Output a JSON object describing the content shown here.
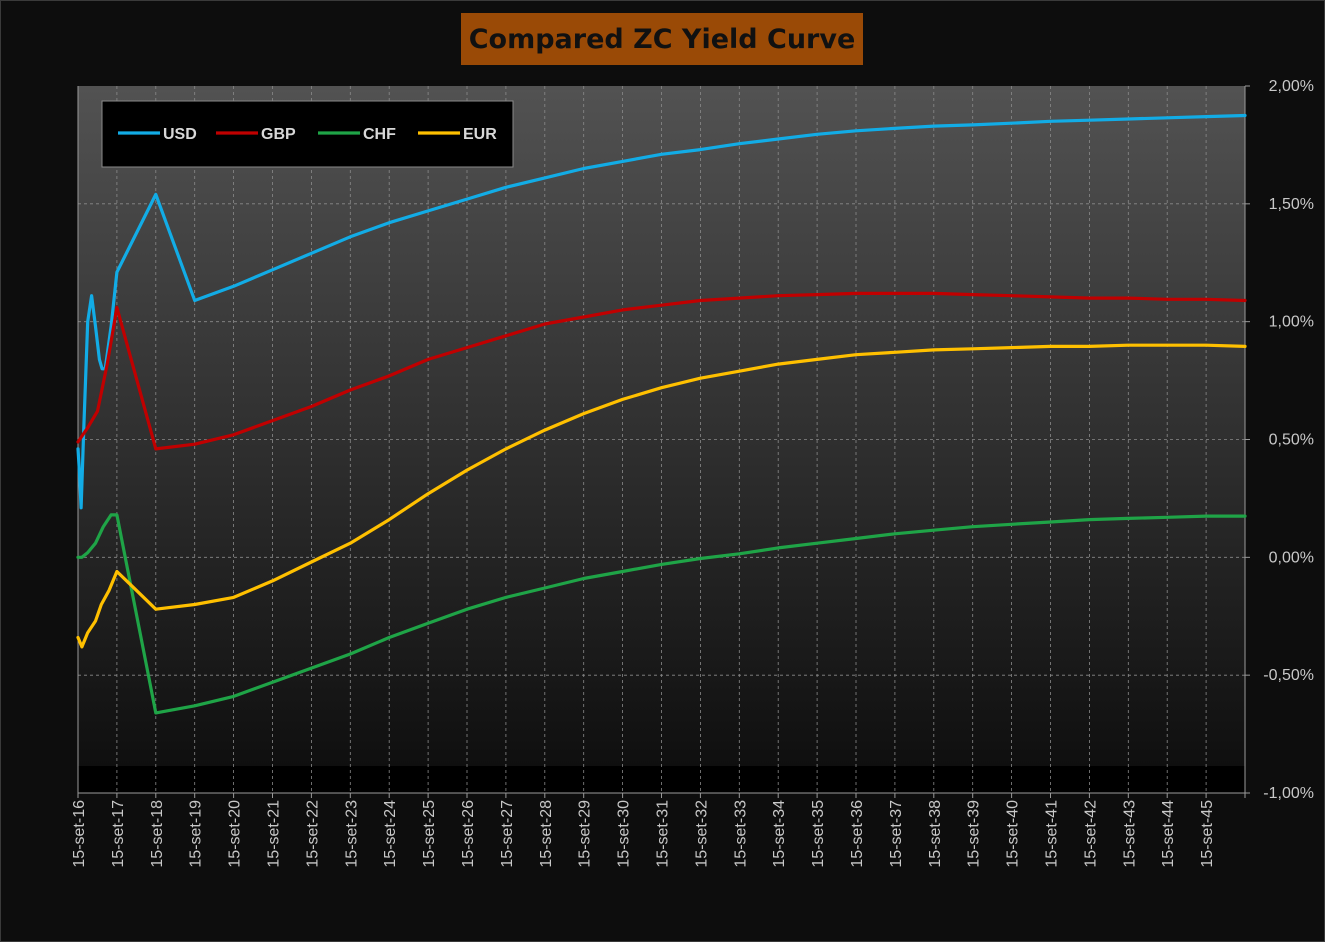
{
  "title": "Compared ZC Yield Curve",
  "colors": {
    "USD": "#12ace6",
    "GBP": "#c00000",
    "CHF": "#1fa447",
    "EUR": "#ffc000",
    "title_bg": "#9a4a06"
  },
  "chart_data": {
    "type": "line",
    "title": "Compared ZC Yield Curve",
    "xlabel": "",
    "ylabel": "",
    "x_ticks": [
      "15-set-16",
      "15-set-17",
      "15-set-18",
      "15-set-19",
      "15-set-20",
      "15-set-21",
      "15-set-22",
      "15-set-23",
      "15-set-24",
      "15-set-25",
      "15-set-26",
      "15-set-27",
      "15-set-28",
      "15-set-29",
      "15-set-30",
      "15-set-31",
      "15-set-32",
      "15-set-33",
      "15-set-34",
      "15-set-35",
      "15-set-36",
      "15-set-37",
      "15-set-38",
      "15-set-39",
      "15-set-40",
      "15-set-41",
      "15-set-42",
      "15-set-43",
      "15-set-44",
      "15-set-45"
    ],
    "y_ticks": [
      "2,00%",
      "1,50%",
      "1,00%",
      "0,50%",
      "0,00%",
      "-0,50%",
      "-1,00%"
    ],
    "ylim": [
      -1.0,
      2.0
    ],
    "xlim": [
      0,
      30
    ],
    "y_unit": "%",
    "grid": true,
    "legend_position": "top-left",
    "series": [
      {
        "name": "USD",
        "points": [
          [
            0,
            0.46
          ],
          [
            0.04,
            0.35
          ],
          [
            0.08,
            0.21
          ],
          [
            0.15,
            0.55
          ],
          [
            0.25,
            1.0
          ],
          [
            0.35,
            1.11
          ],
          [
            0.45,
            0.98
          ],
          [
            0.55,
            0.84
          ],
          [
            0.62,
            0.8
          ],
          [
            0.7,
            0.8
          ],
          [
            0.85,
            0.98
          ],
          [
            1,
            1.21
          ],
          [
            2,
            1.54
          ],
          [
            3,
            1.09
          ],
          [
            4,
            1.15
          ],
          [
            5,
            1.22
          ],
          [
            6,
            1.29
          ],
          [
            7,
            1.36
          ],
          [
            8,
            1.42
          ],
          [
            9,
            1.47
          ],
          [
            10,
            1.52
          ],
          [
            11,
            1.57
          ],
          [
            12,
            1.61
          ],
          [
            13,
            1.65
          ],
          [
            14,
            1.68
          ],
          [
            15,
            1.71
          ],
          [
            16,
            1.73
          ],
          [
            17,
            1.755
          ],
          [
            18,
            1.775
          ],
          [
            19,
            1.795
          ],
          [
            20,
            1.81
          ],
          [
            21,
            1.82
          ],
          [
            22,
            1.83
          ],
          [
            23,
            1.835
          ],
          [
            24,
            1.842
          ],
          [
            25,
            1.85
          ],
          [
            26,
            1.855
          ],
          [
            27,
            1.86
          ],
          [
            28,
            1.865
          ],
          [
            29,
            1.87
          ],
          [
            30,
            1.875
          ]
        ]
      },
      {
        "name": "GBP",
        "points": [
          [
            0,
            0.49
          ],
          [
            0.25,
            0.55
          ],
          [
            0.5,
            0.62
          ],
          [
            0.75,
            0.82
          ],
          [
            1,
            1.06
          ],
          [
            2,
            0.46
          ],
          [
            3,
            0.48
          ],
          [
            4,
            0.52
          ],
          [
            5,
            0.58
          ],
          [
            6,
            0.64
          ],
          [
            7,
            0.71
          ],
          [
            8,
            0.77
          ],
          [
            9,
            0.84
          ],
          [
            10,
            0.89
          ],
          [
            11,
            0.94
          ],
          [
            12,
            0.99
          ],
          [
            13,
            1.02
          ],
          [
            14,
            1.05
          ],
          [
            15,
            1.07
          ],
          [
            16,
            1.09
          ],
          [
            17,
            1.1
          ],
          [
            18,
            1.11
          ],
          [
            19,
            1.115
          ],
          [
            20,
            1.12
          ],
          [
            21,
            1.12
          ],
          [
            22,
            1.12
          ],
          [
            23,
            1.115
          ],
          [
            24,
            1.11
          ],
          [
            25,
            1.105
          ],
          [
            26,
            1.1
          ],
          [
            27,
            1.1
          ],
          [
            28,
            1.095
          ],
          [
            29,
            1.095
          ],
          [
            30,
            1.09
          ]
        ]
      },
      {
        "name": "CHF",
        "points": [
          [
            0,
            0.0
          ],
          [
            0.1,
            0.0
          ],
          [
            0.25,
            0.02
          ],
          [
            0.45,
            0.06
          ],
          [
            0.65,
            0.13
          ],
          [
            0.85,
            0.18
          ],
          [
            1,
            0.18
          ],
          [
            2,
            -0.66
          ],
          [
            3,
            -0.63
          ],
          [
            4,
            -0.59
          ],
          [
            5,
            -0.53
          ],
          [
            6,
            -0.47
          ],
          [
            7,
            -0.41
          ],
          [
            8,
            -0.34
          ],
          [
            9,
            -0.28
          ],
          [
            10,
            -0.22
          ],
          [
            11,
            -0.17
          ],
          [
            12,
            -0.13
          ],
          [
            13,
            -0.09
          ],
          [
            14,
            -0.06
          ],
          [
            15,
            -0.03
          ],
          [
            16,
            -0.005
          ],
          [
            17,
            0.015
          ],
          [
            18,
            0.04
          ],
          [
            19,
            0.06
          ],
          [
            20,
            0.08
          ],
          [
            21,
            0.1
          ],
          [
            22,
            0.115
          ],
          [
            23,
            0.13
          ],
          [
            24,
            0.14
          ],
          [
            25,
            0.15
          ],
          [
            26,
            0.16
          ],
          [
            27,
            0.165
          ],
          [
            28,
            0.17
          ],
          [
            29,
            0.175
          ],
          [
            30,
            0.175
          ]
        ]
      },
      {
        "name": "EUR",
        "points": [
          [
            0,
            -0.34
          ],
          [
            0.1,
            -0.38
          ],
          [
            0.25,
            -0.32
          ],
          [
            0.45,
            -0.27
          ],
          [
            0.6,
            -0.2
          ],
          [
            0.8,
            -0.14
          ],
          [
            1,
            -0.06
          ],
          [
            2,
            -0.22
          ],
          [
            3,
            -0.2
          ],
          [
            4,
            -0.17
          ],
          [
            5,
            -0.1
          ],
          [
            6,
            -0.02
          ],
          [
            7,
            0.06
          ],
          [
            8,
            0.16
          ],
          [
            9,
            0.27
          ],
          [
            10,
            0.37
          ],
          [
            11,
            0.46
          ],
          [
            12,
            0.54
          ],
          [
            13,
            0.61
          ],
          [
            14,
            0.67
          ],
          [
            15,
            0.72
          ],
          [
            16,
            0.76
          ],
          [
            17,
            0.79
          ],
          [
            18,
            0.82
          ],
          [
            19,
            0.84
          ],
          [
            20,
            0.86
          ],
          [
            21,
            0.87
          ],
          [
            22,
            0.88
          ],
          [
            23,
            0.885
          ],
          [
            24,
            0.89
          ],
          [
            25,
            0.895
          ],
          [
            26,
            0.895
          ],
          [
            27,
            0.9
          ],
          [
            28,
            0.9
          ],
          [
            29,
            0.9
          ],
          [
            30,
            0.895
          ]
        ]
      }
    ]
  }
}
